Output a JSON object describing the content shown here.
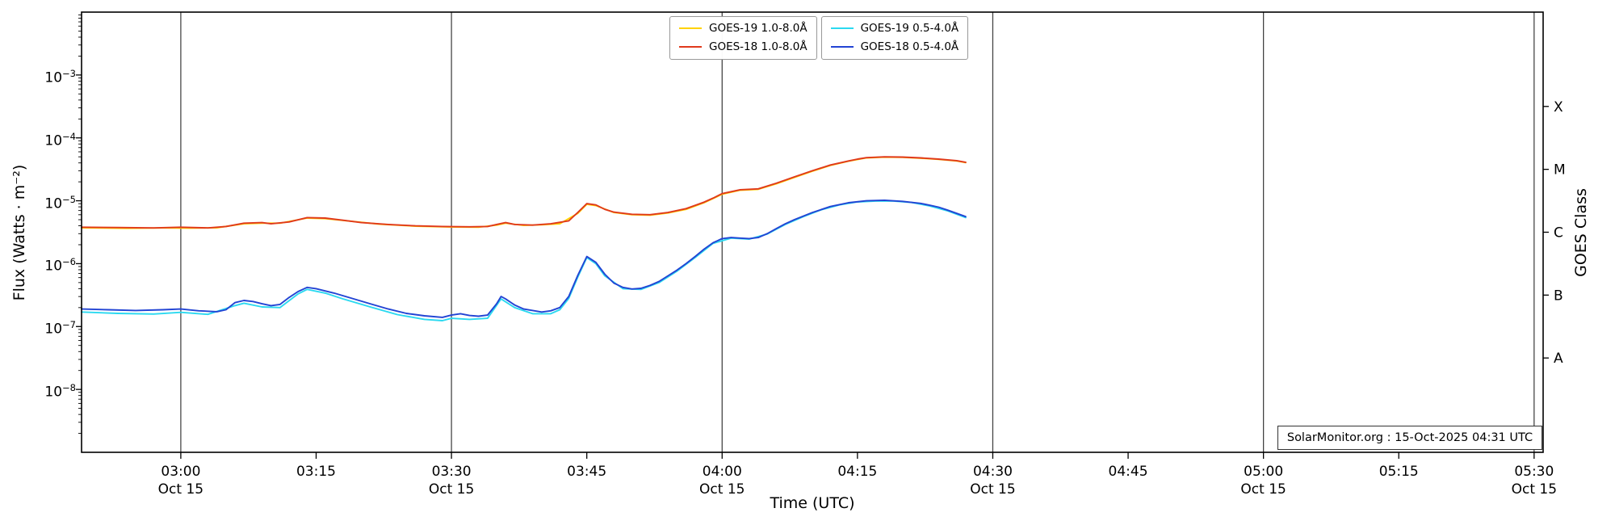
{
  "chart_data": {
    "type": "line",
    "title": "",
    "xlabel": "Time (UTC)",
    "ylabel": "Flux (Watts · m⁻²)",
    "y2label": "GOES Class",
    "watermark": "SolarMonitor.org : 15-Oct-2025 04:31 UTC",
    "x_domain_minutes": [
      169,
      331
    ],
    "y_log_domain": [
      -9,
      -2
    ],
    "grid": "vertical-only",
    "legend_position": "top-center",
    "colors": {
      "grid": "#3f3f3f",
      "frame": "#000000"
    },
    "x_ticks": [
      {
        "minutes": 180,
        "label": "03:00",
        "date": "Oct 15",
        "grid": true
      },
      {
        "minutes": 195,
        "label": "03:15",
        "date": "",
        "grid": false
      },
      {
        "minutes": 210,
        "label": "03:30",
        "date": "Oct 15",
        "grid": true
      },
      {
        "minutes": 225,
        "label": "03:45",
        "date": "",
        "grid": false
      },
      {
        "minutes": 240,
        "label": "04:00",
        "date": "Oct 15",
        "grid": true
      },
      {
        "minutes": 255,
        "label": "04:15",
        "date": "",
        "grid": false
      },
      {
        "minutes": 270,
        "label": "04:30",
        "date": "Oct 15",
        "grid": true
      },
      {
        "minutes": 285,
        "label": "04:45",
        "date": "",
        "grid": false
      },
      {
        "minutes": 300,
        "label": "05:00",
        "date": "Oct 15",
        "grid": true
      },
      {
        "minutes": 315,
        "label": "05:15",
        "date": "",
        "grid": false
      },
      {
        "minutes": 330,
        "label": "05:30",
        "date": "Oct 15",
        "grid": true
      }
    ],
    "y_ticks": [
      {
        "exp": -3
      },
      {
        "exp": -4
      },
      {
        "exp": -5
      },
      {
        "exp": -6
      },
      {
        "exp": -7
      },
      {
        "exp": -8
      }
    ],
    "right_labels": [
      {
        "label": "X",
        "log": -3.5
      },
      {
        "label": "M",
        "log": -4.5
      },
      {
        "label": "C",
        "log": -5.5
      },
      {
        "label": "B",
        "log": -6.5
      },
      {
        "label": "A",
        "log": -7.5
      }
    ],
    "series": [
      {
        "name": "GOES-19 1.0-8.0Å",
        "color": "#ffd200",
        "points": [
          [
            169,
            3.72e-06
          ],
          [
            174,
            3.65e-06
          ],
          [
            178,
            3.7e-06
          ],
          [
            181,
            3.68e-06
          ],
          [
            184,
            3.72e-06
          ],
          [
            187,
            4.3e-06
          ],
          [
            189,
            4.4e-06
          ],
          [
            191,
            4.4e-06
          ],
          [
            194,
            5.3e-06
          ],
          [
            196,
            5.2e-06
          ],
          [
            199,
            4.7e-06
          ],
          [
            202,
            4.25e-06
          ],
          [
            206,
            3.95e-06
          ],
          [
            210,
            3.82e-06
          ],
          [
            213,
            3.8e-06
          ],
          [
            215,
            4.1e-06
          ],
          [
            216,
            4.4e-06
          ],
          [
            218,
            4.05e-06
          ],
          [
            220,
            4.15e-06
          ],
          [
            222,
            4.3e-06
          ],
          [
            224,
            6.3e-06
          ],
          [
            225,
            8.8e-06
          ],
          [
            226,
            8.4e-06
          ],
          [
            228,
            6.5e-06
          ],
          [
            230,
            6e-06
          ],
          [
            232,
            5.9e-06
          ],
          [
            234,
            6.4e-06
          ],
          [
            236,
            7.3e-06
          ],
          [
            238,
            9.3e-06
          ],
          [
            240,
            1.27e-05
          ],
          [
            242,
            1.47e-05
          ],
          [
            244,
            1.52e-05
          ],
          [
            246,
            1.86e-05
          ],
          [
            248,
            2.35e-05
          ],
          [
            250,
            2.95e-05
          ],
          [
            252,
            3.65e-05
          ],
          [
            254,
            4.25e-05
          ],
          [
            256,
            4.8e-05
          ],
          [
            258,
            4.95e-05
          ],
          [
            260,
            4.9e-05
          ],
          [
            262,
            4.75e-05
          ],
          [
            264,
            4.55e-05
          ],
          [
            266,
            4.3e-05
          ],
          [
            267,
            4.05e-05
          ]
        ]
      },
      {
        "name": "GOES-18 1.0-8.0Å",
        "color": "#e0391c",
        "points": [
          [
            169,
            3.8e-06
          ],
          [
            173,
            3.75e-06
          ],
          [
            177,
            3.7e-06
          ],
          [
            180,
            3.8e-06
          ],
          [
            183,
            3.7e-06
          ],
          [
            185,
            3.9e-06
          ],
          [
            187,
            4.4e-06
          ],
          [
            189,
            4.5e-06
          ],
          [
            190,
            4.3e-06
          ],
          [
            192,
            4.6e-06
          ],
          [
            194,
            5.4e-06
          ],
          [
            196,
            5.3e-06
          ],
          [
            198,
            4.9e-06
          ],
          [
            200,
            4.5e-06
          ],
          [
            203,
            4.2e-06
          ],
          [
            206,
            4e-06
          ],
          [
            209,
            3.9e-06
          ],
          [
            212,
            3.85e-06
          ],
          [
            214,
            3.9e-06
          ],
          [
            215,
            4.2e-06
          ],
          [
            216,
            4.5e-06
          ],
          [
            217,
            4.2e-06
          ],
          [
            219,
            4.1e-06
          ],
          [
            221,
            4.3e-06
          ],
          [
            223,
            4.8e-06
          ],
          [
            224,
            6.5e-06
          ],
          [
            225,
            9e-06
          ],
          [
            226,
            8.6e-06
          ],
          [
            227,
            7.3e-06
          ],
          [
            228,
            6.6e-06
          ],
          [
            230,
            6.1e-06
          ],
          [
            232,
            6e-06
          ],
          [
            234,
            6.5e-06
          ],
          [
            236,
            7.5e-06
          ],
          [
            238,
            9.5e-06
          ],
          [
            239,
            1.1e-05
          ],
          [
            240,
            1.3e-05
          ],
          [
            242,
            1.5e-05
          ],
          [
            244,
            1.55e-05
          ],
          [
            246,
            1.9e-05
          ],
          [
            248,
            2.4e-05
          ],
          [
            250,
            3e-05
          ],
          [
            252,
            3.7e-05
          ],
          [
            254,
            4.3e-05
          ],
          [
            255,
            4.6e-05
          ],
          [
            256,
            4.85e-05
          ],
          [
            258,
            5e-05
          ],
          [
            260,
            4.95e-05
          ],
          [
            262,
            4.8e-05
          ],
          [
            264,
            4.6e-05
          ],
          [
            266,
            4.35e-05
          ],
          [
            267,
            4.1e-05
          ]
        ]
      },
      {
        "name": "GOES-19 0.5-4.0Å",
        "color": "#2bd9f0",
        "points": [
          [
            169,
            1.7e-07
          ],
          [
            173,
            1.62e-07
          ],
          [
            177,
            1.58e-07
          ],
          [
            180,
            1.68e-07
          ],
          [
            183,
            1.56e-07
          ],
          [
            186,
            2.15e-07
          ],
          [
            187,
            2.35e-07
          ],
          [
            189,
            2.05e-07
          ],
          [
            191,
            2e-07
          ],
          [
            193,
            3.3e-07
          ],
          [
            194,
            3.9e-07
          ],
          [
            196,
            3.4e-07
          ],
          [
            198,
            2.75e-07
          ],
          [
            201,
            2.05e-07
          ],
          [
            204,
            1.55e-07
          ],
          [
            207,
            1.3e-07
          ],
          [
            209,
            1.24e-07
          ],
          [
            210,
            1.35e-07
          ],
          [
            212,
            1.3e-07
          ],
          [
            214,
            1.35e-07
          ],
          [
            215.5,
            2.75e-07
          ],
          [
            217,
            2e-07
          ],
          [
            219,
            1.6e-07
          ],
          [
            221,
            1.6e-07
          ],
          [
            222,
            1.85e-07
          ],
          [
            223,
            2.8e-07
          ],
          [
            224,
            6.1e-07
          ],
          [
            225,
            1.25e-06
          ],
          [
            226,
            1e-06
          ],
          [
            227,
            6.4e-07
          ],
          [
            229,
            4e-07
          ],
          [
            231,
            3.9e-07
          ],
          [
            233,
            5e-07
          ],
          [
            235,
            7.6e-07
          ],
          [
            237,
            1.25e-06
          ],
          [
            239,
            2.1e-06
          ],
          [
            241,
            2.55e-06
          ],
          [
            243,
            2.45e-06
          ],
          [
            245,
            2.95e-06
          ],
          [
            247,
            4.2e-06
          ],
          [
            249,
            5.6e-06
          ],
          [
            251,
            7.2e-06
          ],
          [
            253,
            8.6e-06
          ],
          [
            255,
            9.6e-06
          ],
          [
            257,
            9.9e-06
          ],
          [
            259,
            9.9e-06
          ],
          [
            261,
            9.4e-06
          ],
          [
            263,
            8.3e-06
          ],
          [
            265,
            6.9e-06
          ],
          [
            267,
            5.4e-06
          ]
        ]
      },
      {
        "name": "GOES-18 0.5-4.0Å",
        "color": "#2244d4",
        "points": [
          [
            169,
            1.9e-07
          ],
          [
            172,
            1.85e-07
          ],
          [
            175,
            1.8e-07
          ],
          [
            178,
            1.85e-07
          ],
          [
            180,
            1.9e-07
          ],
          [
            182,
            1.78e-07
          ],
          [
            184,
            1.72e-07
          ],
          [
            185,
            1.85e-07
          ],
          [
            186,
            2.4e-07
          ],
          [
            187,
            2.6e-07
          ],
          [
            188,
            2.5e-07
          ],
          [
            189,
            2.3e-07
          ],
          [
            190,
            2.15e-07
          ],
          [
            191,
            2.25e-07
          ],
          [
            192,
            2.9e-07
          ],
          [
            193,
            3.6e-07
          ],
          [
            194,
            4.2e-07
          ],
          [
            195,
            4e-07
          ],
          [
            197,
            3.4e-07
          ],
          [
            199,
            2.8e-07
          ],
          [
            201,
            2.3e-07
          ],
          [
            203,
            1.9e-07
          ],
          [
            205,
            1.62e-07
          ],
          [
            207,
            1.48e-07
          ],
          [
            209,
            1.4e-07
          ],
          [
            210,
            1.52e-07
          ],
          [
            211,
            1.6e-07
          ],
          [
            212,
            1.5e-07
          ],
          [
            213,
            1.46e-07
          ],
          [
            214,
            1.52e-07
          ],
          [
            215,
            2.3e-07
          ],
          [
            215.5,
            3e-07
          ],
          [
            216,
            2.75e-07
          ],
          [
            217,
            2.2e-07
          ],
          [
            218,
            1.9e-07
          ],
          [
            220,
            1.7e-07
          ],
          [
            221,
            1.78e-07
          ],
          [
            222,
            2e-07
          ],
          [
            223,
            3e-07
          ],
          [
            224,
            6.5e-07
          ],
          [
            225,
            1.3e-06
          ],
          [
            226,
            1.05e-06
          ],
          [
            227,
            6.8e-07
          ],
          [
            228,
            4.9e-07
          ],
          [
            229,
            4.2e-07
          ],
          [
            230,
            3.95e-07
          ],
          [
            231,
            4.05e-07
          ],
          [
            232,
            4.5e-07
          ],
          [
            233,
            5.2e-07
          ],
          [
            234,
            6.4e-07
          ],
          [
            235,
            7.9e-07
          ],
          [
            236,
            1e-06
          ],
          [
            237,
            1.3e-06
          ],
          [
            238,
            1.7e-06
          ],
          [
            239,
            2.15e-06
          ],
          [
            240,
            2.5e-06
          ],
          [
            241,
            2.6e-06
          ],
          [
            242,
            2.55e-06
          ],
          [
            243,
            2.5e-06
          ],
          [
            244,
            2.6e-06
          ],
          [
            245,
            3e-06
          ],
          [
            246,
            3.6e-06
          ],
          [
            247,
            4.3e-06
          ],
          [
            248,
            5e-06
          ],
          [
            250,
            6.5e-06
          ],
          [
            252,
            8.1e-06
          ],
          [
            254,
            9.3e-06
          ],
          [
            256,
            1e-05
          ],
          [
            258,
            1.02e-05
          ],
          [
            260,
            9.8e-06
          ],
          [
            262,
            9.1e-06
          ],
          [
            263,
            8.5e-06
          ],
          [
            264,
            7.9e-06
          ],
          [
            265,
            7.1e-06
          ],
          [
            266,
            6.3e-06
          ],
          [
            267,
            5.6e-06
          ]
        ]
      }
    ]
  }
}
